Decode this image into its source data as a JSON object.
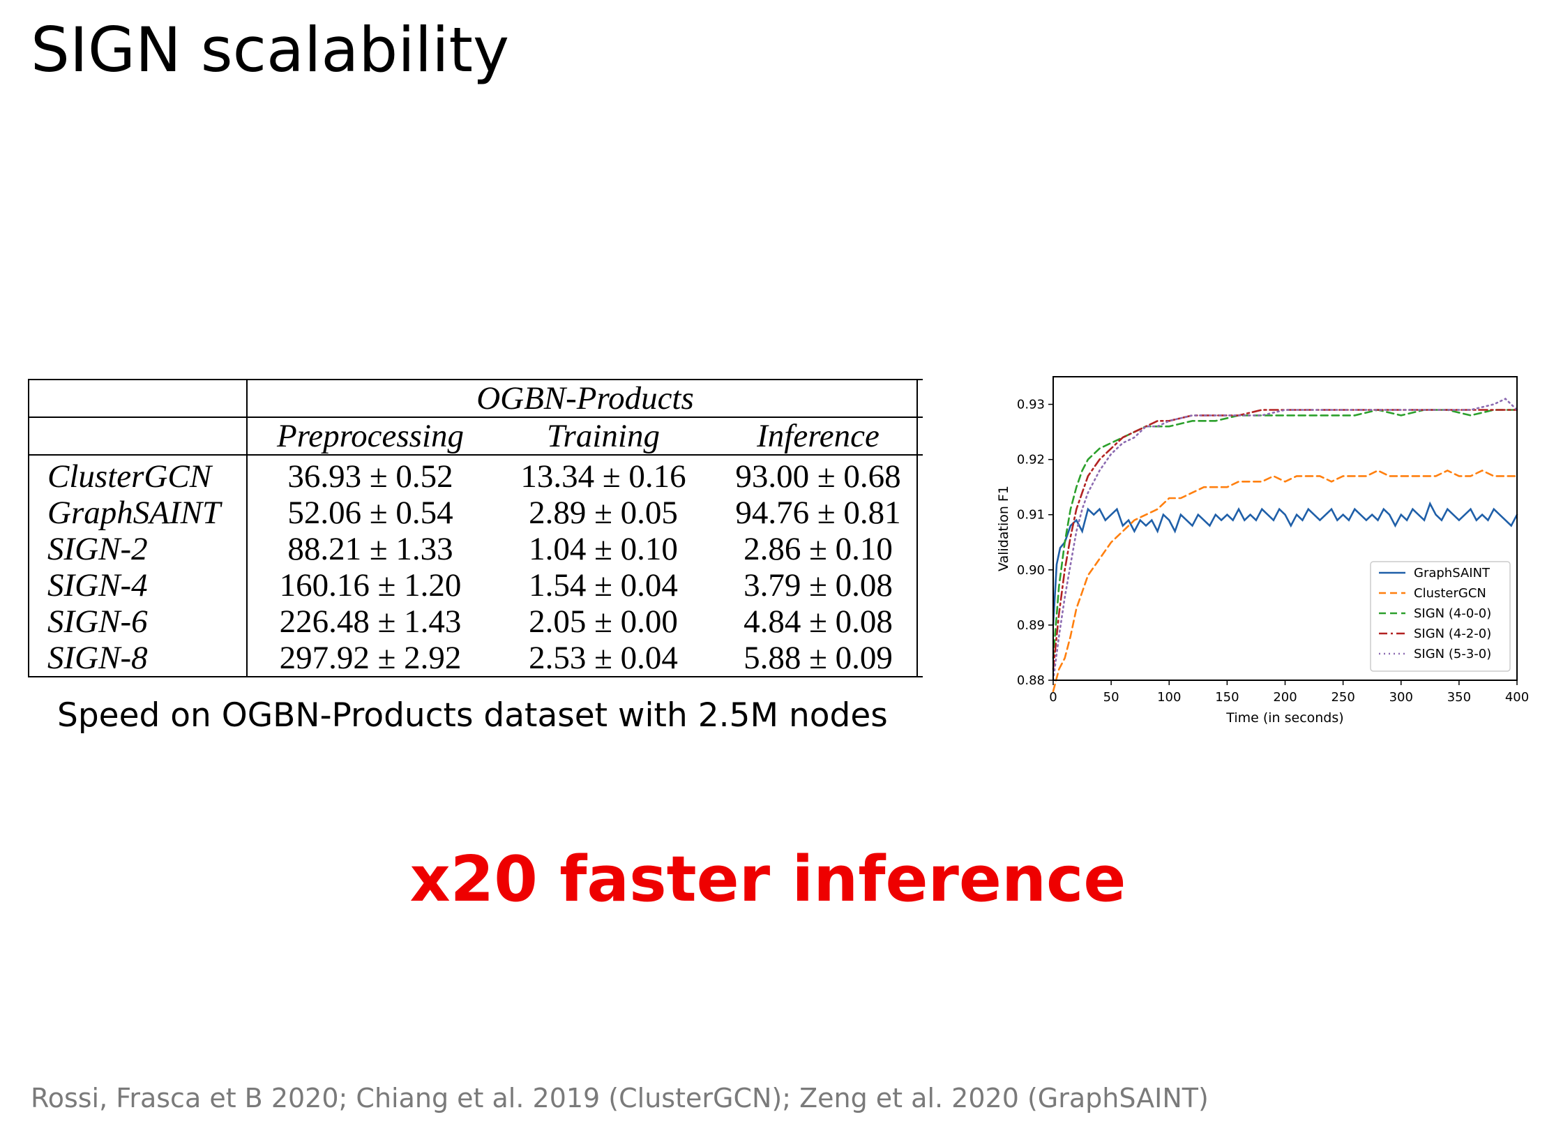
{
  "slide": {
    "title": "SIGN scalability",
    "caption": "Speed on OGBN-Products dataset with 2.5M nodes",
    "highlight": "x20 faster inference",
    "citation": "Rossi, Frasca et B 2020; Chiang et al. 2019 (ClusterGCN); Zeng et al. 2020 (GraphSAINT)",
    "highlight_color": "#ee0000"
  },
  "table": {
    "group_header": "OGBN-Products",
    "columns": [
      "Preprocessing",
      "Training",
      "Inference"
    ],
    "rows": [
      {
        "method": "ClusterGCN",
        "values": [
          "36.93 ± 0.52",
          "13.34 ± 0.16",
          "93.00 ± 0.68"
        ]
      },
      {
        "method": "GraphSAINT",
        "values": [
          "52.06 ± 0.54",
          "2.89 ± 0.05",
          "94.76 ± 0.81"
        ]
      },
      {
        "method": "SIGN-2",
        "values": [
          "88.21 ± 1.33",
          "1.04 ± 0.10",
          "2.86 ± 0.10"
        ]
      },
      {
        "method": "SIGN-4",
        "values": [
          "160.16 ± 1.20",
          "1.54 ± 0.04",
          "3.79 ± 0.08"
        ]
      },
      {
        "method": "SIGN-6",
        "values": [
          "226.48 ± 1.43",
          "2.05 ± 0.00",
          "4.84 ± 0.08"
        ]
      },
      {
        "method": "SIGN-8",
        "values": [
          "297.92 ± 2.92",
          "2.53 ± 0.04",
          "5.88 ± 0.09"
        ]
      }
    ]
  },
  "chart_data": {
    "type": "line",
    "title": "",
    "xlabel": "Time (in seconds)",
    "ylabel": "Validation F1",
    "xlim": [
      0,
      400
    ],
    "ylim": [
      0.88,
      0.935
    ],
    "xticks": [
      "0",
      "50",
      "100",
      "150",
      "200",
      "250",
      "300",
      "350",
      "400"
    ],
    "yticks": [
      "0.88",
      "0.89",
      "0.90",
      "0.91",
      "0.92",
      "0.93"
    ],
    "legend_position": "bottom-right",
    "grid": false,
    "series": [
      {
        "name": "GraphSAINT",
        "color": "#1f5fa8",
        "style": "solid",
        "x": [
          0,
          3,
          6,
          10,
          15,
          20,
          25,
          30,
          35,
          40,
          45,
          50,
          55,
          60,
          65,
          70,
          75,
          80,
          85,
          90,
          95,
          100,
          105,
          110,
          115,
          120,
          125,
          130,
          135,
          140,
          145,
          150,
          155,
          160,
          165,
          170,
          175,
          180,
          185,
          190,
          195,
          200,
          205,
          210,
          215,
          220,
          225,
          230,
          235,
          240,
          245,
          250,
          255,
          260,
          265,
          270,
          275,
          280,
          285,
          290,
          295,
          300,
          305,
          310,
          315,
          320,
          325,
          330,
          335,
          340,
          345,
          350,
          355,
          360,
          365,
          370,
          375,
          380,
          385,
          390,
          395,
          400
        ],
        "y": [
          0.89,
          0.901,
          0.904,
          0.905,
          0.908,
          0.909,
          0.907,
          0.911,
          0.91,
          0.911,
          0.909,
          0.91,
          0.911,
          0.908,
          0.909,
          0.907,
          0.909,
          0.908,
          0.909,
          0.907,
          0.91,
          0.909,
          0.907,
          0.91,
          0.909,
          0.908,
          0.91,
          0.909,
          0.908,
          0.91,
          0.909,
          0.91,
          0.909,
          0.911,
          0.909,
          0.91,
          0.909,
          0.911,
          0.91,
          0.909,
          0.911,
          0.91,
          0.908,
          0.91,
          0.909,
          0.911,
          0.91,
          0.909,
          0.91,
          0.911,
          0.909,
          0.91,
          0.909,
          0.911,
          0.91,
          0.909,
          0.91,
          0.909,
          0.911,
          0.91,
          0.908,
          0.91,
          0.909,
          0.911,
          0.91,
          0.909,
          0.912,
          0.91,
          0.909,
          0.911,
          0.91,
          0.909,
          0.91,
          0.911,
          0.909,
          0.91,
          0.909,
          0.911,
          0.91,
          0.909,
          0.908,
          0.91
        ]
      },
      {
        "name": "ClusterGCN",
        "color": "#ff7f0e",
        "style": "dashed",
        "x": [
          0,
          5,
          10,
          15,
          20,
          25,
          30,
          40,
          50,
          60,
          70,
          80,
          90,
          100,
          110,
          120,
          130,
          140,
          150,
          160,
          170,
          180,
          190,
          200,
          210,
          220,
          230,
          240,
          250,
          260,
          270,
          280,
          290,
          300,
          310,
          320,
          330,
          340,
          350,
          360,
          370,
          380,
          390,
          400
        ],
        "y": [
          0.878,
          0.882,
          0.884,
          0.888,
          0.893,
          0.896,
          0.899,
          0.902,
          0.905,
          0.907,
          0.909,
          0.91,
          0.911,
          0.913,
          0.913,
          0.914,
          0.915,
          0.915,
          0.915,
          0.916,
          0.916,
          0.916,
          0.917,
          0.916,
          0.917,
          0.917,
          0.917,
          0.916,
          0.917,
          0.917,
          0.917,
          0.918,
          0.917,
          0.917,
          0.917,
          0.917,
          0.917,
          0.918,
          0.917,
          0.917,
          0.918,
          0.917,
          0.917,
          0.917
        ]
      },
      {
        "name": "SIGN (4-0-0)",
        "color": "#2ca02c",
        "style": "dashed",
        "x": [
          0,
          5,
          10,
          15,
          20,
          25,
          30,
          40,
          50,
          60,
          70,
          80,
          90,
          100,
          120,
          140,
          160,
          180,
          200,
          220,
          240,
          260,
          280,
          300,
          320,
          340,
          360,
          380,
          400
        ],
        "y": [
          0.884,
          0.897,
          0.905,
          0.911,
          0.915,
          0.918,
          0.92,
          0.922,
          0.923,
          0.924,
          0.925,
          0.926,
          0.926,
          0.926,
          0.927,
          0.927,
          0.928,
          0.928,
          0.928,
          0.928,
          0.928,
          0.928,
          0.929,
          0.928,
          0.929,
          0.929,
          0.928,
          0.929,
          0.929
        ]
      },
      {
        "name": "SIGN (4-2-0)",
        "color": "#b22222",
        "style": "dashdot",
        "x": [
          0,
          5,
          10,
          15,
          20,
          25,
          30,
          40,
          50,
          60,
          70,
          80,
          90,
          100,
          120,
          140,
          160,
          180,
          200,
          220,
          240,
          260,
          280,
          300,
          320,
          340,
          360,
          380,
          400
        ],
        "y": [
          0.882,
          0.892,
          0.9,
          0.906,
          0.911,
          0.914,
          0.917,
          0.92,
          0.922,
          0.924,
          0.925,
          0.926,
          0.927,
          0.927,
          0.928,
          0.928,
          0.928,
          0.929,
          0.929,
          0.929,
          0.929,
          0.929,
          0.929,
          0.929,
          0.929,
          0.929,
          0.929,
          0.929,
          0.929
        ]
      },
      {
        "name": "SIGN (5-3-0)",
        "color": "#8c6bb1",
        "style": "dotted",
        "x": [
          0,
          5,
          10,
          15,
          20,
          25,
          30,
          40,
          50,
          60,
          70,
          80,
          90,
          100,
          120,
          140,
          160,
          180,
          200,
          220,
          240,
          260,
          280,
          300,
          320,
          340,
          360,
          380,
          390,
          400
        ],
        "y": [
          0.88,
          0.888,
          0.895,
          0.901,
          0.907,
          0.911,
          0.914,
          0.918,
          0.921,
          0.923,
          0.924,
          0.926,
          0.926,
          0.927,
          0.928,
          0.928,
          0.928,
          0.928,
          0.929,
          0.929,
          0.929,
          0.929,
          0.929,
          0.929,
          0.929,
          0.929,
          0.929,
          0.93,
          0.931,
          0.929
        ]
      }
    ]
  }
}
